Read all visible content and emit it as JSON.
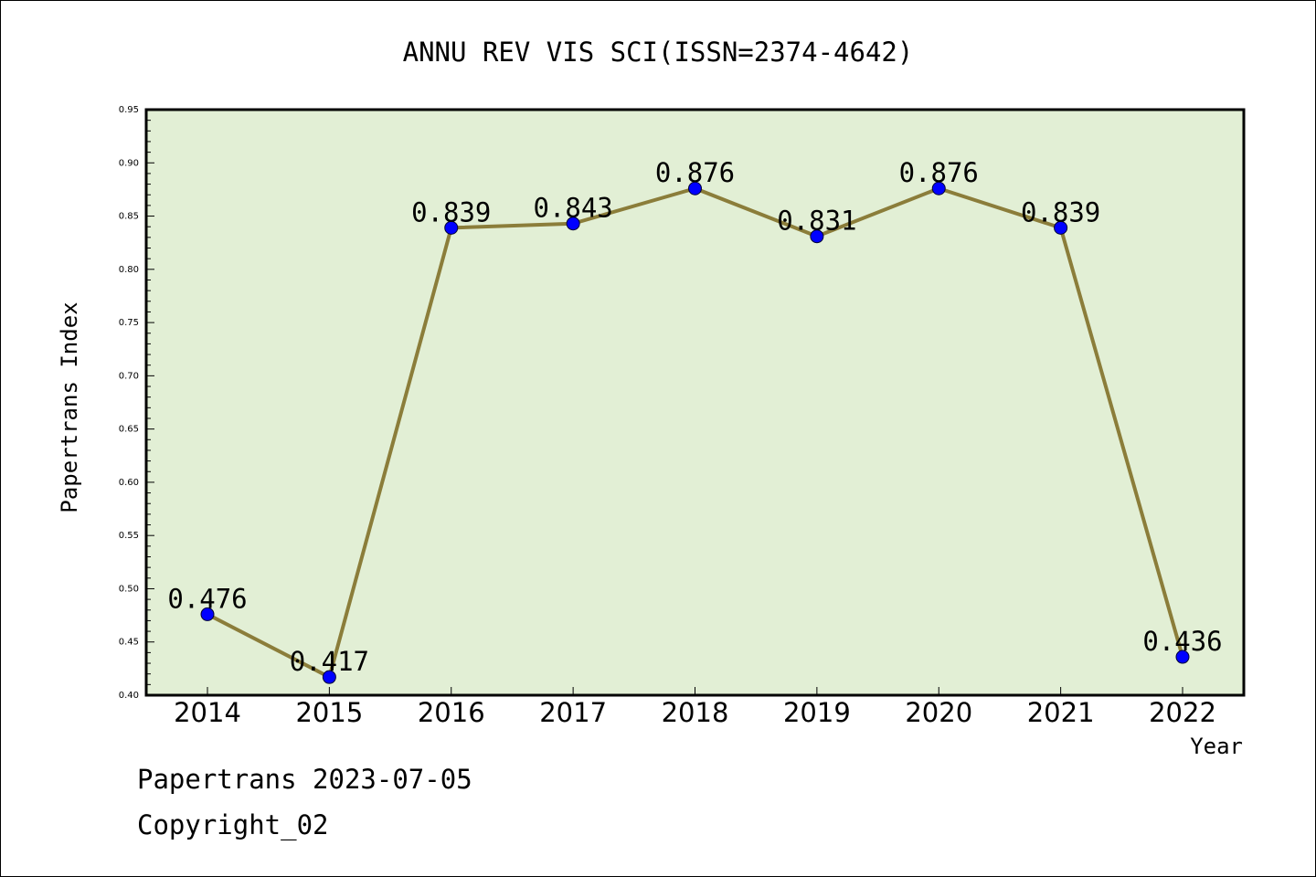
{
  "chart_data": {
    "type": "line",
    "title": "ANNU REV VIS SCI(ISSN=2374-4642)",
    "xlabel": "Year",
    "ylabel": "Papertrans Index",
    "categories": [
      "2014",
      "2015",
      "2016",
      "2017",
      "2018",
      "2019",
      "2020",
      "2021",
      "2022"
    ],
    "series": [
      {
        "values": [
          0.476,
          0.417,
          0.839,
          0.843,
          0.876,
          0.831,
          0.876,
          0.839,
          0.436
        ],
        "data_labels": [
          "0.476",
          "0.417",
          "0.839",
          "0.843",
          "0.876",
          "0.831",
          "0.876",
          "0.839",
          "0.436"
        ]
      }
    ],
    "ylim": [
      0.4,
      0.95
    ],
    "yticks": [
      "0.40",
      "0.45",
      "0.50",
      "0.55",
      "0.60",
      "0.65",
      "0.70",
      "0.75",
      "0.80",
      "0.85",
      "0.90",
      "0.95"
    ],
    "grid": false,
    "colors": {
      "plot_background": "#e2efd5",
      "line": "#8b7d3a",
      "marker": "#0000ff",
      "axis": "#000000"
    }
  },
  "footer": {
    "line1": "Papertrans 2023-07-05",
    "line2": "Copyright_02"
  }
}
